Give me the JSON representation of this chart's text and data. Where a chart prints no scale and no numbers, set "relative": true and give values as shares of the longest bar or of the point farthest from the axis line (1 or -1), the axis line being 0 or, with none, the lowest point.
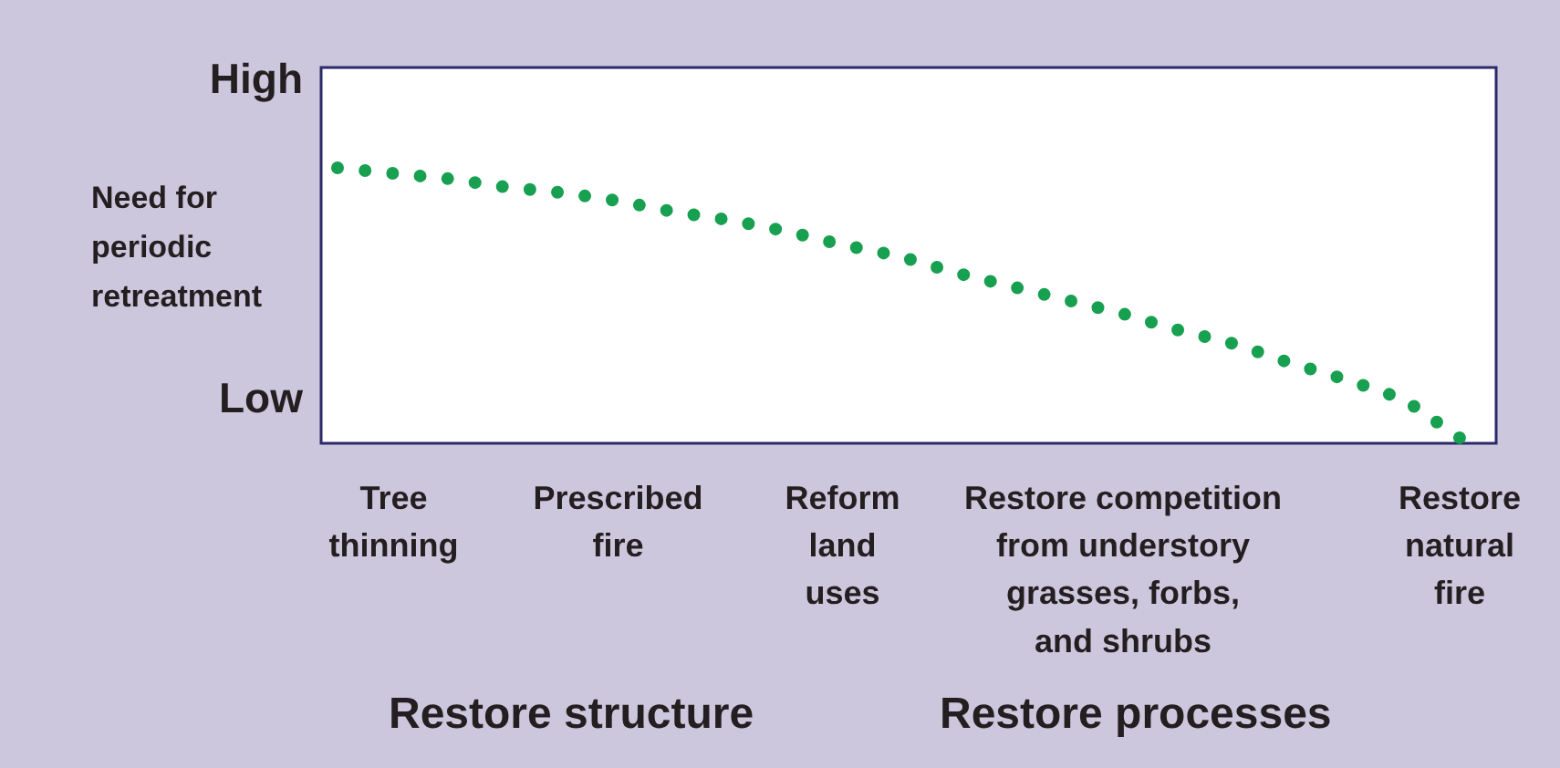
{
  "chart_data": {
    "type": "line",
    "relative": true,
    "ylabel": "Need for periodic retreatment",
    "categories": [
      null,
      "Tree\nthinning",
      null,
      null,
      null,
      "Prescribed\nfire",
      null,
      null,
      null,
      "Reform\nland\nuses",
      null,
      null,
      null,
      null,
      "Restore competition\nfrom understory\ngrasses, forbs,\nand shrubs",
      null,
      null,
      null,
      null,
      null,
      "Restore\nnatural\nfire"
    ],
    "series": [
      {
        "color": "#16a050",
        "values": [
          1,
          0.98,
          0.96,
          0.93,
          0.91,
          0.88,
          0.84,
          0.81,
          0.77,
          0.72,
          0.68,
          0.62,
          0.57,
          0.52,
          0.47,
          0.41,
          0.36,
          0.29,
          0.23,
          0.16,
          0.02
        ]
      }
    ],
    "line_style": "dotted",
    "marker": "none",
    "annotations": [
      "High",
      "Low",
      "Restore structure",
      "Restore processes"
    ]
  }
}
